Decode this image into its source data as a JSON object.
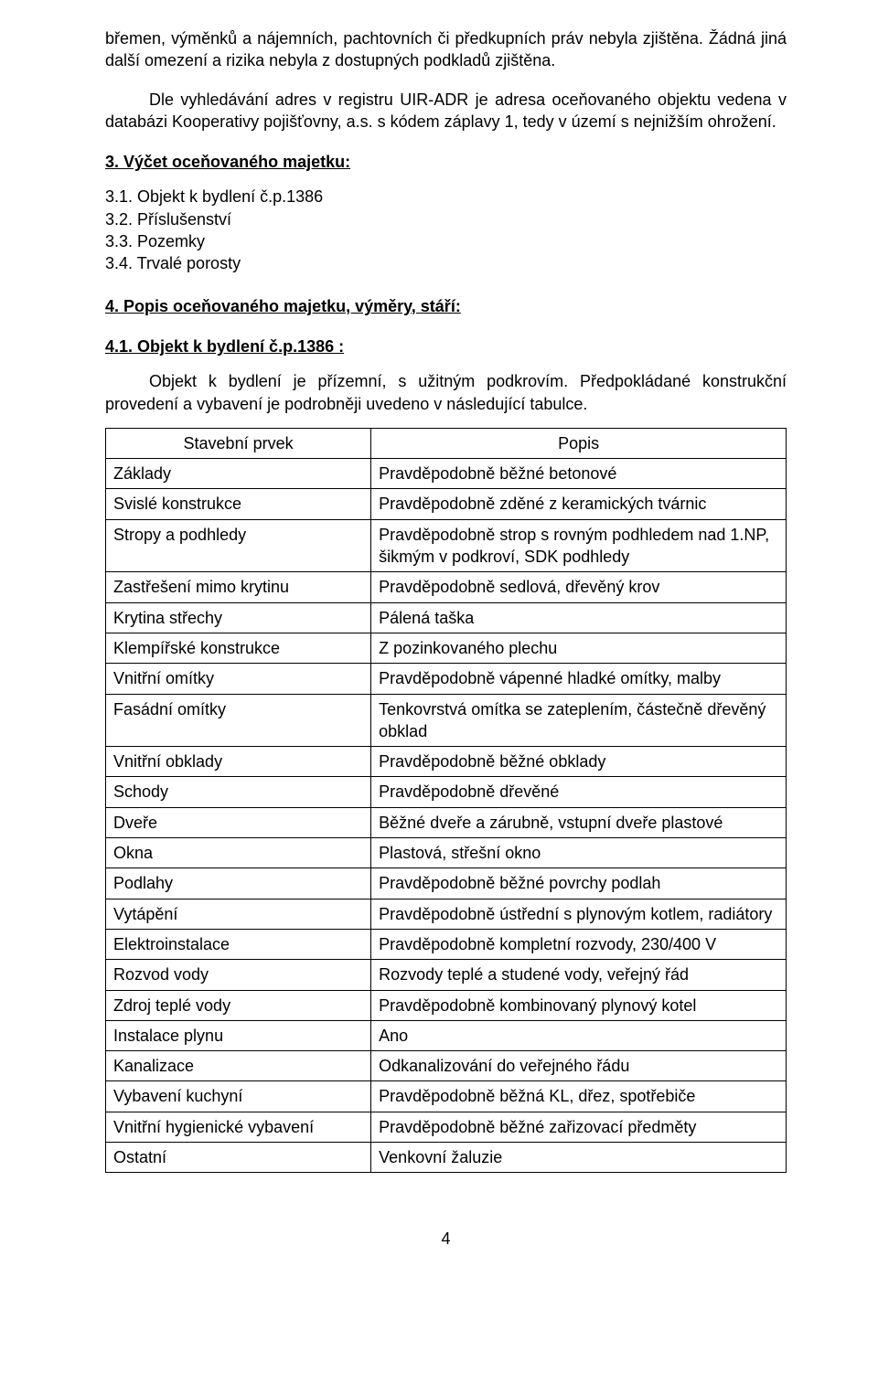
{
  "intro": {
    "p1": "břemen, výměnků a nájemních, pachtovních či předkupních práv nebyla zjištěna. Žádná jiná další omezení a rizika nebyla z dostupných podkladů zjištěna.",
    "p2": "Dle vyhledávání adres v registru UIR-ADR je adresa oceňovaného objektu vedena v databázi Kooperativy pojišťovny, a.s. s kódem záplavy 1, tedy v území s nejnižším ohrožení."
  },
  "section3": {
    "title": "3. Výčet oceňovaného majetku:",
    "items": [
      "3.1. Objekt k bydlení č.p.1386",
      "3.2. Příslušenství",
      "3.3. Pozemky",
      "3.4. Trvalé porosty"
    ]
  },
  "section4": {
    "title": "4. Popis oceňovaného majetku, výměry, stáří:",
    "sub_title": "4.1. Objekt k bydlení č.p.1386 :",
    "sub_text": "Objekt k bydlení je přízemní, s užitným podkrovím. Předpokládané konstrukční provedení a vybavení je podrobněji uvedeno v následující tabulce."
  },
  "table": {
    "header": {
      "left": "Stavební prvek",
      "right": "Popis"
    },
    "rows": [
      {
        "l": "Základy",
        "r": "Pravděpodobně běžné betonové"
      },
      {
        "l": "Svislé konstrukce",
        "r": "Pravděpodobně zděné z keramických tvárnic"
      },
      {
        "l": "Stropy a podhledy",
        "r": "Pravděpodobně strop s rovným podhledem nad 1.NP, šikmým v podkroví, SDK podhledy"
      },
      {
        "l": "Zastřešení mimo krytinu",
        "r": "Pravděpodobně sedlová, dřevěný krov"
      },
      {
        "l": "Krytina střechy",
        "r": "Pálená taška"
      },
      {
        "l": "Klempířské konstrukce",
        "r": "Z pozinkovaného plechu"
      },
      {
        "l": "Vnitřní omítky",
        "r": "Pravděpodobně vápenné hladké omítky, malby"
      },
      {
        "l": "Fasádní omítky",
        "r": "Tenkovrstvá omítka se zateplením, částečně dřevěný obklad"
      },
      {
        "l": "Vnitřní obklady",
        "r": "Pravděpodobně běžné obklady"
      },
      {
        "l": "Schody",
        "r": "Pravděpodobně dřevěné"
      },
      {
        "l": "Dveře",
        "r": "Běžné dveře a zárubně, vstupní dveře plastové"
      },
      {
        "l": "Okna",
        "r": "Plastová, střešní okno"
      },
      {
        "l": "Podlahy",
        "r": "Pravděpodobně běžné povrchy podlah"
      },
      {
        "l": "Vytápění",
        "r": "Pravděpodobně ústřední s plynovým kotlem, radiátory"
      },
      {
        "l": "Elektroinstalace",
        "r": "Pravděpodobně kompletní rozvody, 230/400 V"
      },
      {
        "l": "Rozvod vody",
        "r": "Rozvody teplé a studené vody, veřejný řád"
      },
      {
        "l": "Zdroj teplé vody",
        "r": "Pravděpodobně kombinovaný plynový kotel"
      },
      {
        "l": "Instalace plynu",
        "r": "Ano"
      },
      {
        "l": "Kanalizace",
        "r": "Odkanalizování do veřejného řádu"
      },
      {
        "l": "Vybavení kuchyní",
        "r": "Pravděpodobně běžná KL, dřez, spotřebiče"
      },
      {
        "l": "Vnitřní hygienické vybavení",
        "r": "Pravděpodobně běžné zařizovací předměty"
      },
      {
        "l": "Ostatní",
        "r": "Venkovní žaluzie"
      }
    ]
  },
  "page_number": "4"
}
